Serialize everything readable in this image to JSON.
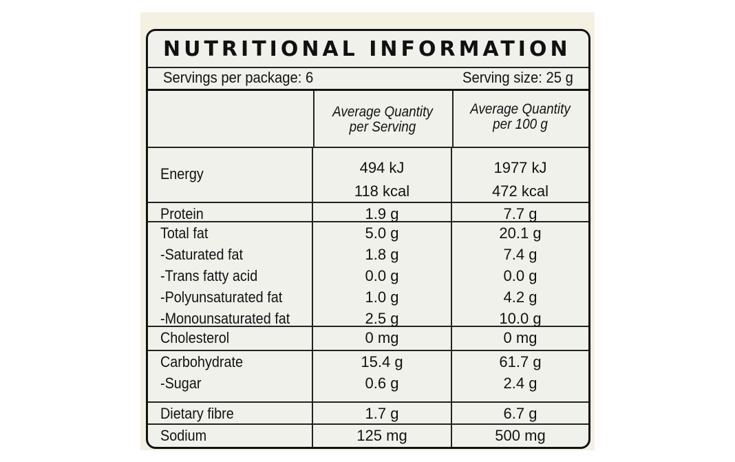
{
  "title": "NUTRITIONAL INFORMATION",
  "servings_per_package": "Servings per package: 6",
  "serving_size": "Serving size: 25 g",
  "headers": {
    "per_serving": [
      "Average Quantity",
      "per Serving"
    ],
    "per_100g": [
      "Average Quantity",
      "per 100 g"
    ]
  },
  "rows": [
    {
      "labels": [
        "Energy"
      ],
      "serving": [
        "494 kJ",
        "118 kcal"
      ],
      "per100": [
        "1977 kJ",
        "472 kcal"
      ]
    },
    {
      "labels": [
        "Protein"
      ],
      "serving": [
        "1.9 g"
      ],
      "per100": [
        "7.7 g"
      ]
    },
    {
      "labels": [
        "Total fat",
        "-Saturated fat",
        "-Trans fatty acid",
        "-Polyunsaturated fat",
        "-Monounsaturated fat"
      ],
      "serving": [
        "5.0 g",
        "1.8 g",
        "0.0 g",
        "1.0 g",
        "2.5 g"
      ],
      "per100": [
        "20.1 g",
        "7.4 g",
        "0.0 g",
        "4.2 g",
        "10.0 g"
      ]
    },
    {
      "labels": [
        "Cholesterol"
      ],
      "serving": [
        "0 mg"
      ],
      "per100": [
        "0 mg"
      ]
    },
    {
      "labels": [
        "Carbohydrate",
        "-Sugar"
      ],
      "serving": [
        "15.4 g",
        "0.6 g"
      ],
      "per100": [
        "61.7 g",
        "2.4 g"
      ]
    },
    {
      "labels": [
        "Dietary fibre"
      ],
      "serving": [
        "1.7 g"
      ],
      "per100": [
        "6.7 g"
      ]
    },
    {
      "labels": [
        "Sodium"
      ],
      "serving": [
        "125 mg"
      ],
      "per100": [
        "500 mg"
      ]
    }
  ]
}
